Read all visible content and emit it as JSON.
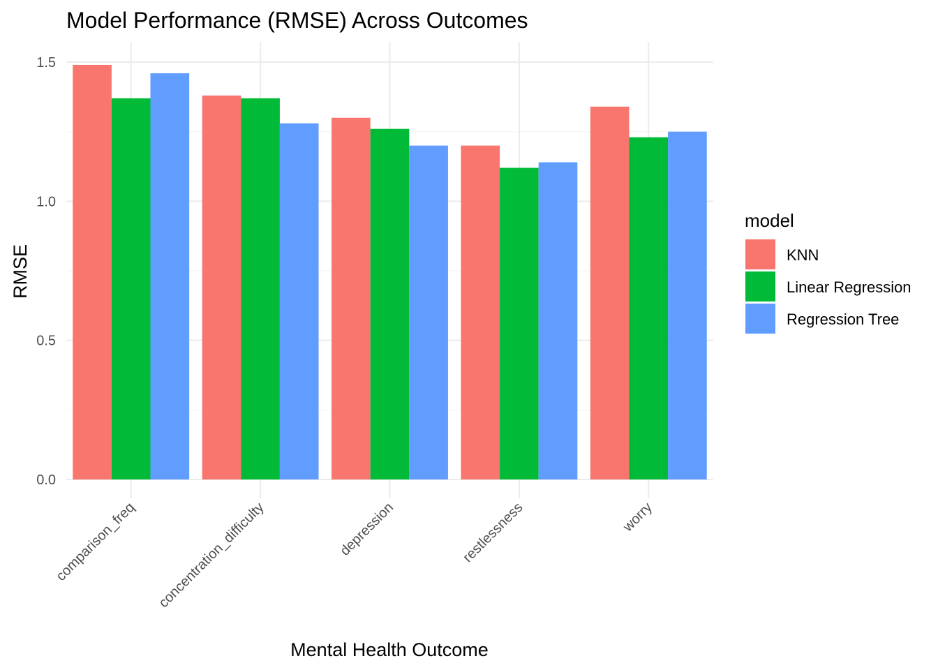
{
  "chart_data": {
    "type": "bar",
    "title": "Model Performance (RMSE) Across Outcomes",
    "xlabel": "Mental Health Outcome",
    "ylabel": "RMSE",
    "categories": [
      "comparison_freq",
      "concentration_difficulty",
      "depression",
      "restlessness",
      "worry"
    ],
    "series": [
      {
        "name": "KNN",
        "color": "#F8766D",
        "values": [
          1.49,
          1.38,
          1.3,
          1.2,
          1.34
        ]
      },
      {
        "name": "Linear Regression",
        "color": "#00BA38",
        "values": [
          1.37,
          1.37,
          1.26,
          1.12,
          1.23
        ]
      },
      {
        "name": "Regression Tree",
        "color": "#619CFF",
        "values": [
          1.46,
          1.28,
          1.2,
          1.14,
          1.25
        ]
      }
    ],
    "ylim": [
      0,
      1.5
    ],
    "yticks": [
      0.0,
      0.5,
      1.0,
      1.5
    ],
    "ytick_labels": [
      "0.0",
      "0.5",
      "1.0",
      "1.5"
    ],
    "grid": true,
    "legend": {
      "title": "model",
      "position": "right"
    },
    "xtick_rotation": 45
  }
}
